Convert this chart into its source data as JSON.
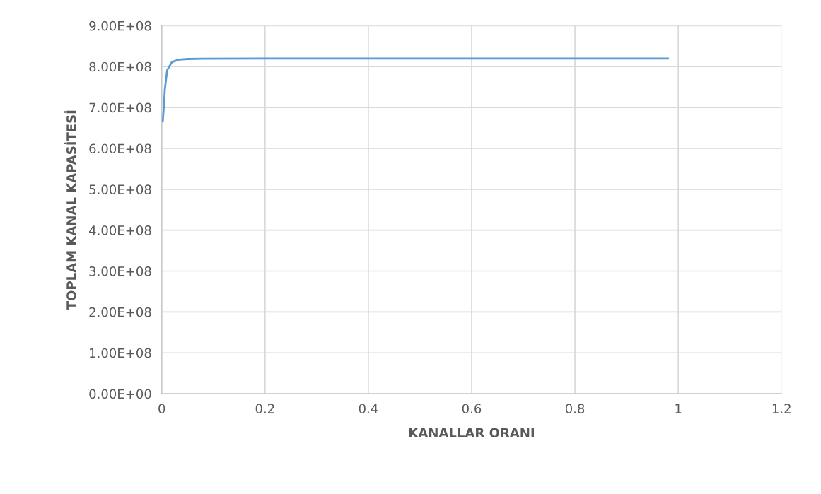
{
  "chart_data": {
    "type": "line",
    "xlabel": "KANALLAR ORANI",
    "ylabel": "TOPLAM KANAL KAPASİTESİ",
    "x": [
      0.002,
      0.004,
      0.006,
      0.0105,
      0.0196,
      0.033,
      0.05,
      0.079,
      0.2,
      0.5,
      0.8,
      0.98
    ],
    "series": [
      {
        "color": "#5b9bd5",
        "values": [
          666000000,
          700000000,
          744000000,
          791000000,
          811000000,
          817000000,
          818500000,
          819000000,
          819500000,
          819500000,
          819500000,
          819500000
        ]
      }
    ],
    "xlim": [
      0,
      1.2
    ],
    "xticks": [
      0,
      0.2,
      0.4,
      0.6,
      0.8,
      1,
      1.2
    ],
    "ylim": [
      0,
      900000000
    ],
    "yticks": [
      {
        "value": 0,
        "label": "0.00E+00"
      },
      {
        "value": 100000000,
        "label": "1.00E+08"
      },
      {
        "value": 200000000,
        "label": "2.00E+08"
      },
      {
        "value": 300000000,
        "label": "3.00E+08"
      },
      {
        "value": 400000000,
        "label": "4.00E+08"
      },
      {
        "value": 500000000,
        "label": "5.00E+08"
      },
      {
        "value": 600000000,
        "label": "6.00E+08"
      },
      {
        "value": 700000000,
        "label": "7.00E+08"
      },
      {
        "value": 800000000,
        "label": "8.00E+08"
      },
      {
        "value": 900000000,
        "label": "9.00E+08"
      }
    ],
    "grid": true,
    "legend": false,
    "marker": "none",
    "line_style": "solid"
  }
}
